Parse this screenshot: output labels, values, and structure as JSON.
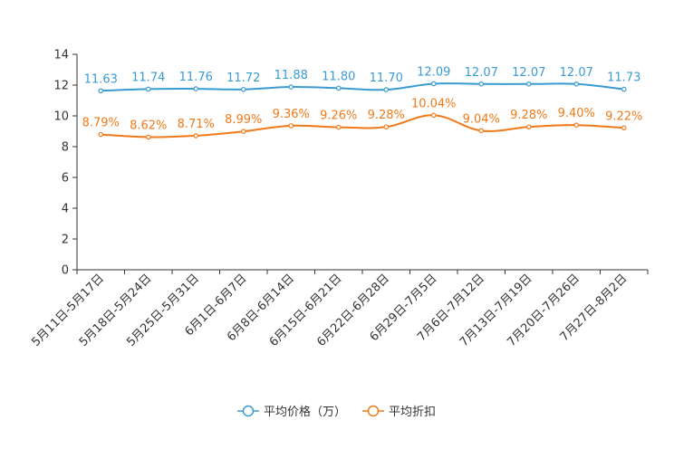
{
  "chart_data": {
    "type": "line",
    "title": "",
    "xlabel": "",
    "ylabel": "",
    "ylim": [
      0,
      14
    ],
    "yticks": [
      0,
      2,
      4,
      6,
      8,
      10,
      12,
      14
    ],
    "grid": false,
    "legend_position": "bottom-center",
    "categories": [
      "5月11日-5月17日",
      "5月18日-5月24日",
      "5月25日-5月31日",
      "6月1日-6月7日",
      "6月8日-6月14日",
      "6月15日-6月21日",
      "6月22日-6月28日",
      "6月29日-7月5日",
      "7月6日-7月12日",
      "7月13日-7月19日",
      "7月20日-7月26日",
      "7月27日-8月2日"
    ],
    "series": [
      {
        "name": "平均价格（万）",
        "color": "#3a9bd3",
        "values": [
          11.63,
          11.74,
          11.76,
          11.72,
          11.88,
          11.8,
          11.7,
          12.09,
          12.07,
          12.07,
          12.07,
          11.73
        ],
        "labels": [
          "11.63",
          "11.74",
          "11.76",
          "11.72",
          "11.88",
          "11.80",
          "11.70",
          "12.09",
          "12.07",
          "12.07",
          "12.07",
          "11.73"
        ]
      },
      {
        "name": "平均折扣",
        "color": "#f07a1a",
        "values": [
          8.79,
          8.62,
          8.71,
          8.99,
          9.36,
          9.26,
          9.28,
          10.04,
          9.04,
          9.28,
          9.4,
          9.22
        ],
        "labels": [
          "8.79%",
          "8.62%",
          "8.71%",
          "8.99%",
          "9.36%",
          "9.26%",
          "9.28%",
          "10.04%",
          "9.04%",
          "9.28%",
          "9.40%",
          "9.22%"
        ]
      }
    ]
  }
}
